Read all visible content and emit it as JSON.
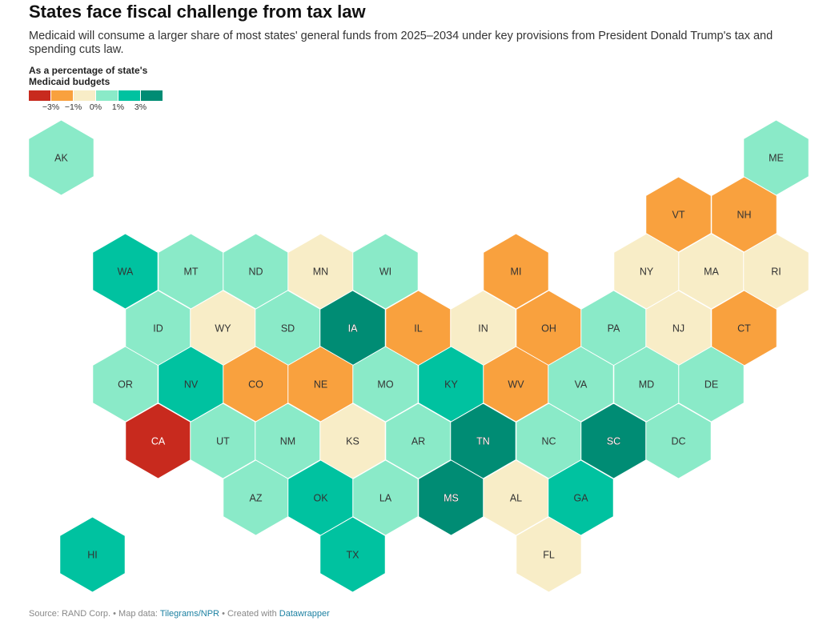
{
  "title": "States face fiscal challenge from tax law",
  "subtitle": "Medicaid will consume a larger share of most states' general funds from 2025–2034 under key provisions from President Donald Trump's tax and spending cuts law.",
  "legend": {
    "title": "As a percentage of state's Medicaid budgets",
    "ticks": [
      "−3%",
      "−1%",
      "0%",
      "1%",
      "3%"
    ],
    "colors": [
      "#c82a1e",
      "#f9a13e",
      "#f8edc7",
      "#8aeac8",
      "#00c2a0",
      "#008c74"
    ]
  },
  "source": {
    "prefix": "Source: RAND Corp. • Map data: ",
    "link1": "Tilegrams/NPR",
    "middle": " • Created with ",
    "link2": "Datawrapper"
  },
  "colors": {
    "dark_red": "#c82a1e",
    "orange": "#f9a13e",
    "cream": "#f8edc7",
    "light_teal": "#8aeac8",
    "teal": "#00c2a0",
    "dark_teal": "#008c74"
  },
  "map_data": {
    "type": "hex-tile-map",
    "states": [
      {
        "abbr": "AK",
        "color": "#8aeac8"
      },
      {
        "abbr": "ME",
        "color": "#8aeac8"
      },
      {
        "abbr": "VT",
        "color": "#f9a13e"
      },
      {
        "abbr": "NH",
        "color": "#f9a13e"
      },
      {
        "abbr": "WA",
        "color": "#00c2a0"
      },
      {
        "abbr": "MT",
        "color": "#8aeac8"
      },
      {
        "abbr": "ND",
        "color": "#8aeac8"
      },
      {
        "abbr": "MN",
        "color": "#f8edc7"
      },
      {
        "abbr": "WI",
        "color": "#8aeac8"
      },
      {
        "abbr": "MI",
        "color": "#f9a13e"
      },
      {
        "abbr": "NY",
        "color": "#f8edc7"
      },
      {
        "abbr": "MA",
        "color": "#f8edc7"
      },
      {
        "abbr": "RI",
        "color": "#f8edc7"
      },
      {
        "abbr": "ID",
        "color": "#8aeac8"
      },
      {
        "abbr": "WY",
        "color": "#f8edc7"
      },
      {
        "abbr": "SD",
        "color": "#8aeac8"
      },
      {
        "abbr": "IA",
        "color": "#008c74"
      },
      {
        "abbr": "IL",
        "color": "#f9a13e"
      },
      {
        "abbr": "IN",
        "color": "#f8edc7"
      },
      {
        "abbr": "OH",
        "color": "#f9a13e"
      },
      {
        "abbr": "PA",
        "color": "#8aeac8"
      },
      {
        "abbr": "NJ",
        "color": "#f8edc7"
      },
      {
        "abbr": "CT",
        "color": "#f9a13e"
      },
      {
        "abbr": "OR",
        "color": "#8aeac8"
      },
      {
        "abbr": "NV",
        "color": "#00c2a0"
      },
      {
        "abbr": "CO",
        "color": "#f9a13e"
      },
      {
        "abbr": "NE",
        "color": "#f9a13e"
      },
      {
        "abbr": "MO",
        "color": "#8aeac8"
      },
      {
        "abbr": "KY",
        "color": "#00c2a0"
      },
      {
        "abbr": "WV",
        "color": "#f9a13e"
      },
      {
        "abbr": "VA",
        "color": "#8aeac8"
      },
      {
        "abbr": "MD",
        "color": "#8aeac8"
      },
      {
        "abbr": "DE",
        "color": "#8aeac8"
      },
      {
        "abbr": "CA",
        "color": "#c82a1e"
      },
      {
        "abbr": "UT",
        "color": "#8aeac8"
      },
      {
        "abbr": "NM",
        "color": "#8aeac8"
      },
      {
        "abbr": "KS",
        "color": "#f8edc7"
      },
      {
        "abbr": "AR",
        "color": "#8aeac8"
      },
      {
        "abbr": "TN",
        "color": "#008c74"
      },
      {
        "abbr": "NC",
        "color": "#8aeac8"
      },
      {
        "abbr": "SC",
        "color": "#008c74"
      },
      {
        "abbr": "DC",
        "color": "#8aeac8"
      },
      {
        "abbr": "AZ",
        "color": "#8aeac8"
      },
      {
        "abbr": "OK",
        "color": "#00c2a0"
      },
      {
        "abbr": "LA",
        "color": "#8aeac8"
      },
      {
        "abbr": "MS",
        "color": "#008c74"
      },
      {
        "abbr": "AL",
        "color": "#f8edc7"
      },
      {
        "abbr": "GA",
        "color": "#00c2a0"
      },
      {
        "abbr": "HI",
        "color": "#00c2a0"
      },
      {
        "abbr": "TX",
        "color": "#00c2a0"
      },
      {
        "abbr": "FL",
        "color": "#f8edc7"
      }
    ]
  }
}
